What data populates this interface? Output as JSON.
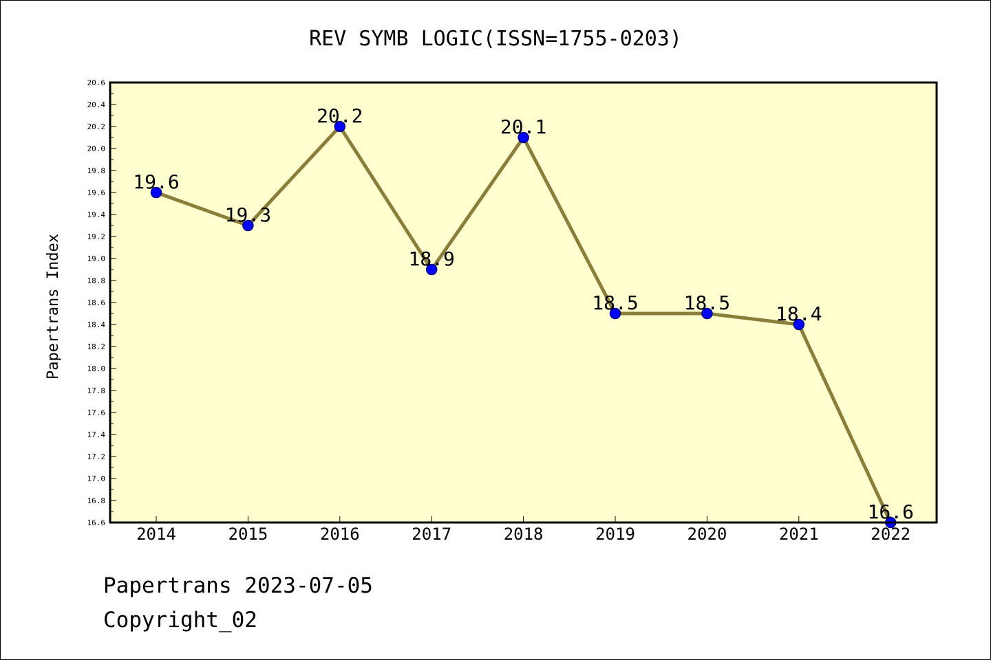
{
  "chart_data": {
    "type": "line",
    "title": "REV SYMB LOGIC(ISSN=1755-0203)",
    "xlabel": "",
    "ylabel": "Papertrans Index",
    "categories": [
      "2014",
      "2015",
      "2016",
      "2017",
      "2018",
      "2019",
      "2020",
      "2021",
      "2022"
    ],
    "series": [
      {
        "values": [
          19.6,
          19.3,
          20.2,
          18.9,
          20.1,
          18.5,
          18.5,
          18.4,
          16.6
        ],
        "labels": [
          "19.6",
          "19.3",
          "20.2",
          "18.9",
          "20.1",
          "18.5",
          "18.5",
          "18.4",
          "16.6"
        ]
      }
    ],
    "ylim": [
      16.6,
      20.6
    ],
    "yticks": [
      "16.6",
      "16.8",
      "17.0",
      "17.2",
      "17.4",
      "17.6",
      "17.8",
      "18.0",
      "18.2",
      "18.4",
      "18.6",
      "18.8",
      "19.0",
      "19.2",
      "19.4",
      "19.6",
      "19.8",
      "20.0",
      "20.2",
      "20.4",
      "20.6"
    ],
    "grid": false,
    "legend": "none",
    "colors": {
      "plot_background": "#ffffd0",
      "line": "#8b7d3a",
      "marker": "#0000ff",
      "marker_edge": "#000080",
      "frame": "#000000"
    }
  },
  "footer": {
    "date_line": "Papertrans 2023-07-05",
    "copyright_line": "Copyright_02"
  }
}
